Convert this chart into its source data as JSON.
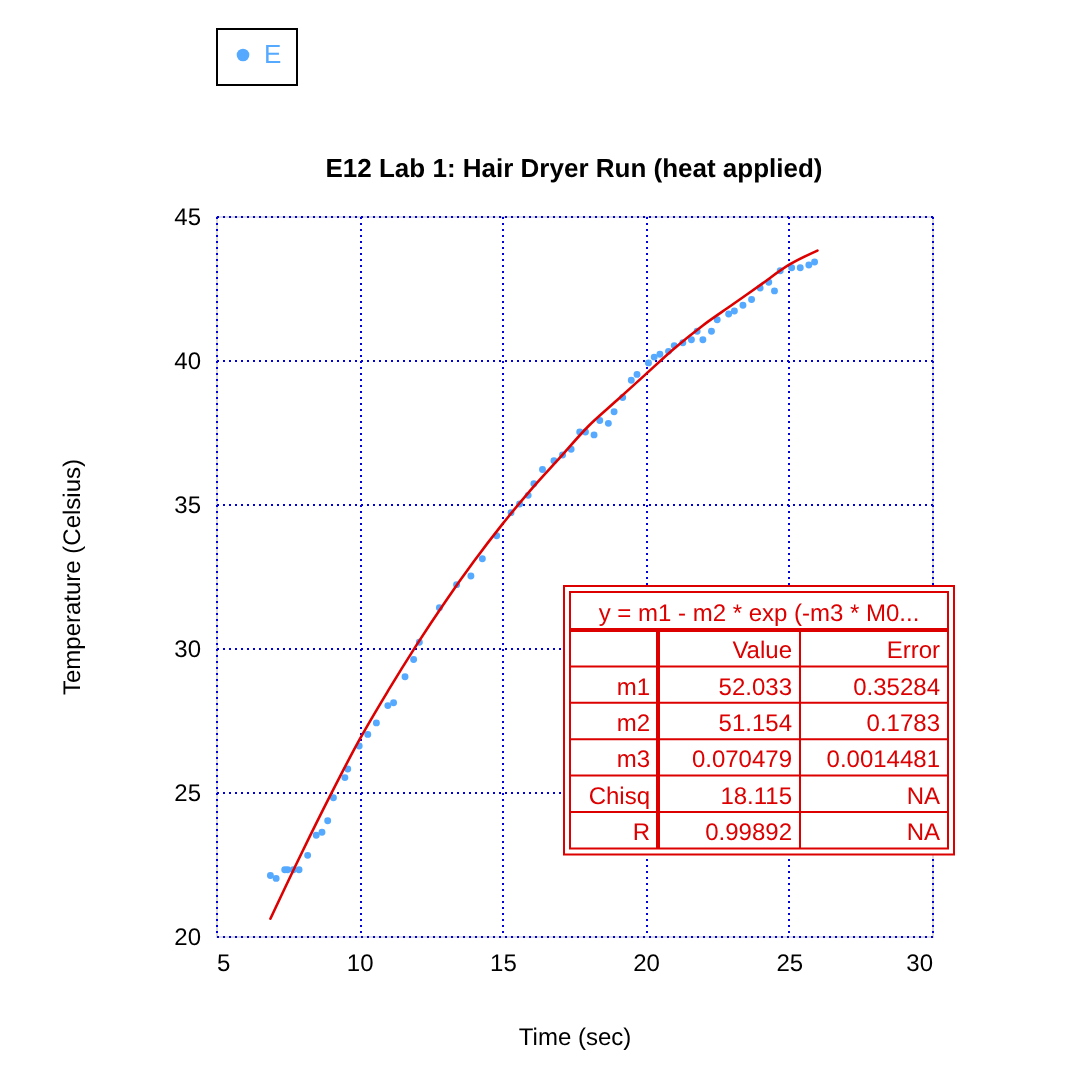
{
  "chart_data": {
    "type": "scatter",
    "title": "E12 Lab 1: Hair Dryer Run (heat applied)",
    "xlabel": "Time (sec)",
    "ylabel": "Temperature (Celsius)",
    "xlim": [
      5,
      30
    ],
    "ylim": [
      20,
      45
    ],
    "xticks": [
      5,
      10,
      15,
      20,
      25,
      30
    ],
    "yticks": [
      20,
      25,
      30,
      35,
      40,
      45
    ],
    "grid": true,
    "legend": "top left",
    "series": [
      {
        "name": "E",
        "marker": "circle",
        "color": "#55aaff",
        "x": [
          6.9,
          7.1,
          7.4,
          7.5,
          7.7,
          7.9,
          8.2,
          8.5,
          8.7,
          8.9,
          9.1,
          9.5,
          9.6,
          10.0,
          10.3,
          10.6,
          11.0,
          11.2,
          11.6,
          11.9,
          12.1,
          12.8,
          13.4,
          13.9,
          14.3,
          14.8,
          15.3,
          15.6,
          15.9,
          16.1,
          16.4,
          16.8,
          17.1,
          17.4,
          17.7,
          17.9,
          18.2,
          18.4,
          18.7,
          18.9,
          19.2,
          19.5,
          19.7,
          20.1,
          20.3,
          20.5,
          20.8,
          21.0,
          21.3,
          21.6,
          21.8,
          22.0,
          22.3,
          22.5,
          22.9,
          23.1,
          23.4,
          23.7,
          24.0,
          24.3,
          24.5,
          24.7,
          25.1,
          25.4,
          25.7,
          25.9
        ],
        "values": [
          22.1,
          22.0,
          22.3,
          22.3,
          22.3,
          22.3,
          22.8,
          23.5,
          23.6,
          24.0,
          24.8,
          25.5,
          25.8,
          26.6,
          27.0,
          27.4,
          28.0,
          28.1,
          29.0,
          29.6,
          30.2,
          31.4,
          32.2,
          32.5,
          33.1,
          33.9,
          34.7,
          35.0,
          35.3,
          35.7,
          36.2,
          36.5,
          36.7,
          36.9,
          37.5,
          37.5,
          37.4,
          37.9,
          37.8,
          38.2,
          38.7,
          39.3,
          39.5,
          39.9,
          40.1,
          40.2,
          40.3,
          40.5,
          40.6,
          40.7,
          41.0,
          40.7,
          41.0,
          41.4,
          41.6,
          41.7,
          41.9,
          42.1,
          42.5,
          42.7,
          42.4,
          43.1,
          43.2,
          43.2,
          43.3,
          43.4
        ]
      },
      {
        "type": "line",
        "color": "#dd0000",
        "x": [
          6.9,
          8,
          9,
          10,
          11,
          12,
          13,
          14,
          15,
          16,
          17,
          18,
          19,
          20,
          21,
          22,
          23,
          24,
          25,
          26
        ],
        "values": [
          20.6,
          22.9,
          24.9,
          26.8,
          28.5,
          30.1,
          31.6,
          33.0,
          34.3,
          35.5,
          36.6,
          37.7,
          38.6,
          39.5,
          40.4,
          41.2,
          41.9,
          42.6,
          43.3,
          43.8
        ]
      }
    ],
    "annotations": [
      "y = m1 - m2 * exp (-m3 * M0...",
      "Value",
      "Error",
      "m1",
      "52.033",
      "0.35284",
      "m2",
      "51.154",
      "0.1783",
      "m3",
      "0.070479",
      "0.0014481",
      "Chisq",
      "18.115",
      "NA",
      "R",
      "0.99892",
      "NA"
    ]
  }
}
